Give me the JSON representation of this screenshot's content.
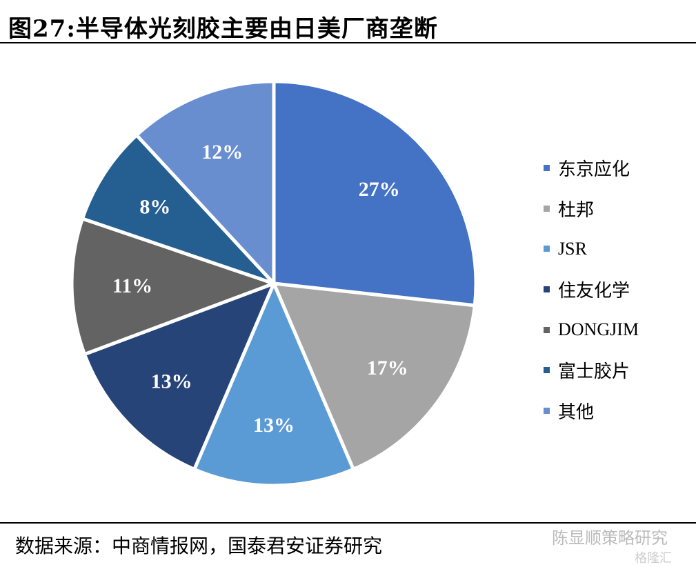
{
  "title": "图27:半导体光刻胶主要由日美厂商垄断",
  "source": "数据来源：中商情报网，国泰君安证券研究",
  "watermark": {
    "account": "陈显顺策略研究",
    "brand": "格隆汇"
  },
  "chart_data": {
    "type": "pie",
    "title": "图27:半导体光刻胶主要由日美厂商垄断",
    "legend_position": "right",
    "start_angle": "12 o'clock, clockwise",
    "categories": [
      "东京应化",
      "杜邦",
      "JSR",
      "住友化学",
      "DONGJIM",
      "富士胶片",
      "其他"
    ],
    "values": [
      27,
      17,
      13,
      13,
      11,
      8,
      12
    ],
    "labels": [
      "27%",
      "17%",
      "13%",
      "13%",
      "11%",
      "8%",
      "12%"
    ],
    "colors": [
      "#4472C4",
      "#A5A5A5",
      "#5B9BD5",
      "#264478",
      "#636363",
      "#255E91",
      "#698ED0"
    ]
  }
}
